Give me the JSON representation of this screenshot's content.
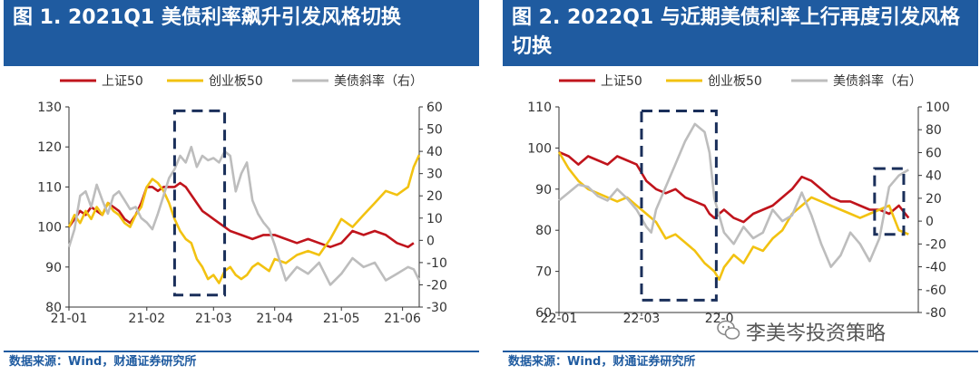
{
  "chart_data": [
    {
      "type": "line",
      "title": "图 1. 2021Q1 美债利率飙升引发风格切换",
      "source": "数据来源：Wind，财通证券研究所",
      "legend": [
        "上证50",
        "创业板50",
        "美债斜率（右）"
      ],
      "legend_position": "top",
      "x_ticks": [
        "21-01",
        "21-02",
        "21-03",
        "21-04",
        "21-05",
        "21-06"
      ],
      "y_left_ticks": [
        "130",
        "120",
        "110",
        "100",
        "90",
        "80"
      ],
      "y_right_ticks": [
        "60",
        "50",
        "40",
        "30",
        "20",
        "10",
        "0",
        "-10",
        "-20",
        "-30"
      ],
      "y_left_range": [
        80,
        130
      ],
      "y_right_range": [
        -30,
        60
      ],
      "x_range": [
        0,
        126
      ],
      "highlight_box": {
        "x": [
          38,
          56
        ],
        "y_left": [
          83,
          129
        ]
      },
      "series": [
        {
          "name": "上证50",
          "axis": "left",
          "color": "#c0141c",
          "x": [
            0,
            2,
            4,
            6,
            8,
            10,
            12,
            14,
            16,
            18,
            20,
            22,
            24,
            26,
            28,
            30,
            32,
            34,
            36,
            38,
            40,
            42,
            44,
            46,
            48,
            50,
            52,
            54,
            56,
            58,
            62,
            66,
            70,
            74,
            78,
            82,
            86,
            90,
            94,
            98,
            102,
            106,
            110,
            114,
            118,
            122,
            124
          ],
          "values": [
            100,
            102,
            104,
            103,
            105,
            104,
            103,
            106,
            105,
            104,
            102,
            101,
            103,
            106,
            110,
            110,
            109,
            110,
            110,
            110,
            111,
            110,
            108,
            106,
            104,
            103,
            102,
            101,
            100,
            99,
            98,
            97,
            98,
            98,
            97,
            96,
            97,
            96,
            95,
            96,
            99,
            98,
            99,
            98,
            96,
            95,
            96
          ]
        },
        {
          "name": "创业板50",
          "axis": "left",
          "color": "#f2c211",
          "x": [
            0,
            2,
            4,
            6,
            8,
            10,
            12,
            14,
            16,
            18,
            20,
            22,
            24,
            26,
            28,
            30,
            32,
            34,
            36,
            38,
            40,
            42,
            44,
            46,
            48,
            50,
            52,
            54,
            56,
            58,
            60,
            62,
            64,
            66,
            68,
            70,
            72,
            74,
            78,
            82,
            86,
            90,
            94,
            98,
            102,
            106,
            110,
            114,
            118,
            122,
            124,
            126
          ],
          "values": [
            100,
            103,
            101,
            104,
            102,
            105,
            103,
            106,
            104,
            103,
            101,
            100,
            103,
            105,
            110,
            112,
            111,
            109,
            106,
            102,
            99,
            97,
            96,
            92,
            90,
            87,
            88,
            86,
            89,
            90,
            88,
            87,
            88,
            90,
            91,
            90,
            89,
            92,
            91,
            93,
            94,
            93,
            97,
            102,
            100,
            103,
            106,
            109,
            108,
            110,
            115,
            118
          ]
        },
        {
          "name": "美债斜率（右）",
          "axis": "right",
          "color": "#bdbdbd",
          "x": [
            0,
            2,
            4,
            6,
            8,
            10,
            12,
            14,
            16,
            18,
            20,
            22,
            24,
            26,
            28,
            30,
            32,
            34,
            36,
            38,
            40,
            42,
            44,
            46,
            48,
            50,
            52,
            54,
            56,
            58,
            60,
            62,
            64,
            66,
            68,
            70,
            72,
            74,
            76,
            78,
            82,
            86,
            90,
            94,
            98,
            102,
            106,
            110,
            114,
            118,
            122,
            124,
            126
          ],
          "values": [
            -3,
            5,
            20,
            22,
            15,
            25,
            18,
            12,
            20,
            22,
            18,
            14,
            15,
            10,
            8,
            5,
            12,
            20,
            28,
            32,
            38,
            35,
            42,
            33,
            38,
            36,
            37,
            35,
            40,
            38,
            22,
            30,
            35,
            18,
            12,
            8,
            5,
            -2,
            -10,
            -18,
            -12,
            -15,
            -10,
            -20,
            -15,
            -8,
            -12,
            -10,
            -18,
            -15,
            -12,
            -13,
            -18
          ]
        }
      ]
    },
    {
      "type": "line",
      "title": "图 2. 2022Q1 与近期美债利率上行再度引发风格切换",
      "source": "数据来源：Wind，财通证券研究所",
      "legend": [
        "上证50",
        "创业板50",
        "美债斜率（右）"
      ],
      "legend_position": "top",
      "x_ticks": [
        "22-01",
        "22-03",
        "22-0"
      ],
      "y_left_ticks": [
        "110",
        "100",
        "90",
        "80",
        "70",
        "60"
      ],
      "y_right_ticks": [
        "100",
        "80",
        "60",
        "40",
        "20",
        "0",
        "-20",
        "-40",
        "-60",
        "-80"
      ],
      "y_left_range": [
        60,
        110
      ],
      "y_right_range": [
        -80,
        100
      ],
      "x_range": [
        0,
        370
      ],
      "highlight_boxes": [
        {
          "x": [
            85,
            162
          ],
          "y_left": [
            63,
            109
          ]
        },
        {
          "x": [
            325,
            355
          ],
          "y_left": [
            79,
            95
          ]
        }
      ],
      "series": [
        {
          "name": "上证50",
          "axis": "left",
          "color": "#c0141c",
          "x": [
            0,
            10,
            20,
            30,
            40,
            50,
            60,
            70,
            80,
            90,
            100,
            110,
            120,
            130,
            140,
            150,
            155,
            160,
            170,
            180,
            190,
            200,
            210,
            220,
            230,
            240,
            250,
            260,
            270,
            280,
            290,
            300,
            310,
            320,
            330,
            340,
            350,
            360
          ],
          "values": [
            99,
            98,
            96,
            98,
            97,
            96,
            98,
            97,
            96,
            92,
            90,
            89,
            90,
            88,
            87,
            86,
            84,
            83,
            85,
            83,
            82,
            84,
            85,
            86,
            88,
            90,
            93,
            92,
            90,
            88,
            87,
            87,
            86,
            85,
            85,
            84,
            86,
            83
          ]
        },
        {
          "name": "创业板50",
          "axis": "left",
          "color": "#f2c211",
          "x": [
            0,
            10,
            20,
            30,
            40,
            50,
            60,
            70,
            80,
            90,
            100,
            110,
            120,
            130,
            140,
            150,
            160,
            165,
            170,
            180,
            190,
            200,
            210,
            220,
            230,
            240,
            250,
            260,
            270,
            280,
            290,
            300,
            310,
            320,
            330,
            340,
            350,
            360
          ],
          "values": [
            99,
            95,
            92,
            90,
            89,
            88,
            87,
            88,
            86,
            84,
            82,
            78,
            79,
            77,
            75,
            72,
            70,
            68,
            71,
            74,
            72,
            76,
            75,
            78,
            80,
            84,
            86,
            88,
            87,
            86,
            85,
            84,
            83,
            84,
            85,
            86,
            80,
            79
          ]
        },
        {
          "name": "美债斜率（右）",
          "axis": "right",
          "color": "#bdbdbd",
          "x": [
            0,
            10,
            20,
            30,
            40,
            50,
            60,
            70,
            80,
            90,
            95,
            100,
            110,
            120,
            130,
            140,
            150,
            155,
            160,
            170,
            180,
            190,
            200,
            210,
            220,
            230,
            240,
            250,
            260,
            270,
            280,
            290,
            300,
            310,
            320,
            330,
            340,
            350,
            360
          ],
          "values": [
            18,
            25,
            32,
            30,
            22,
            18,
            28,
            20,
            10,
            -5,
            -10,
            10,
            30,
            50,
            70,
            85,
            78,
            60,
            20,
            -10,
            -20,
            -5,
            -15,
            -10,
            10,
            0,
            5,
            25,
            5,
            -20,
            -40,
            -30,
            -10,
            -20,
            -35,
            -15,
            30,
            40,
            45
          ]
        }
      ]
    }
  ],
  "watermark": "李美岑投资策略"
}
